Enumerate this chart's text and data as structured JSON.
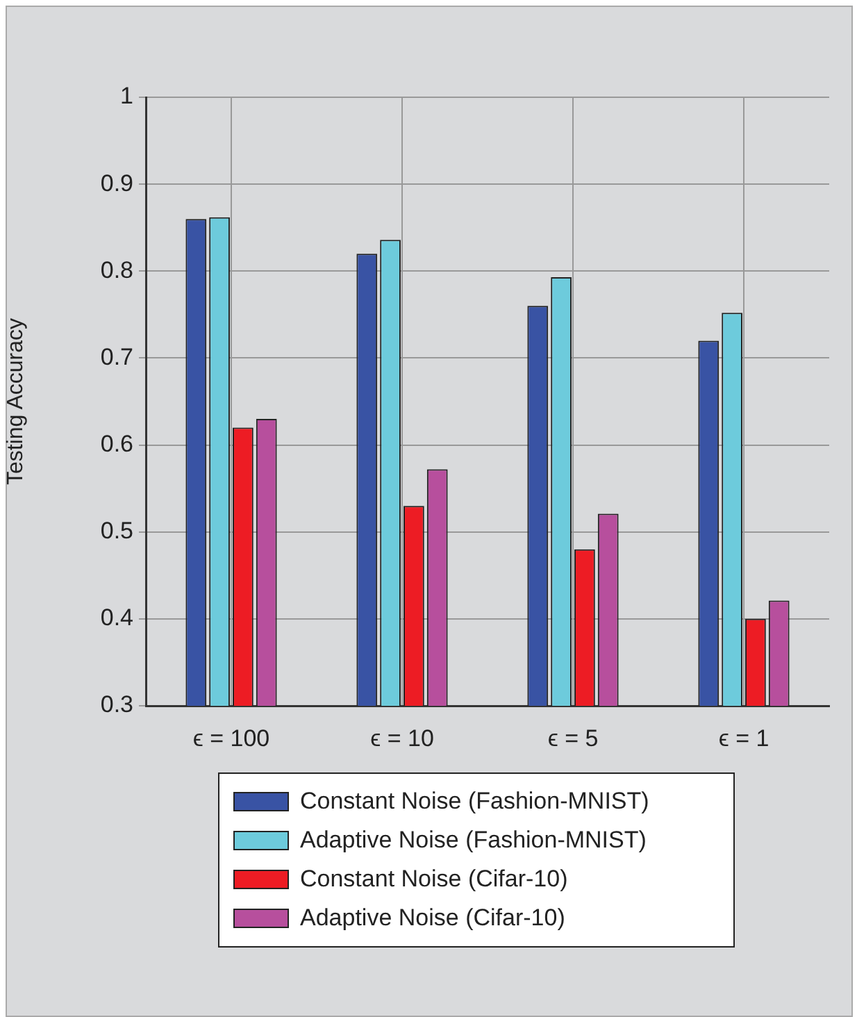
{
  "chart_data": {
    "type": "bar",
    "ylabel": "Testing Accuracy",
    "categories": [
      "ϵ = 100",
      "ϵ = 10",
      "ϵ = 5",
      "ϵ = 1"
    ],
    "series": [
      {
        "name": "Constant Noise (Fashion-MNIST)",
        "color": "#3953a4",
        "values": [
          0.86,
          0.82,
          0.76,
          0.72
        ]
      },
      {
        "name": "Adaptive Noise (Fashion-MNIST)",
        "color": "#6dcbdc",
        "values": [
          0.862,
          0.836,
          0.793,
          0.752
        ]
      },
      {
        "name": "Constant Noise (Cifar-10)",
        "color": "#ed1c24",
        "values": [
          0.62,
          0.53,
          0.48,
          0.4
        ]
      },
      {
        "name": "Adaptive Noise (Cifar-10)",
        "color": "#b74f9d",
        "values": [
          0.63,
          0.572,
          0.521,
          0.421
        ]
      }
    ],
    "ylim": [
      0.3,
      1
    ],
    "yticks": [
      0.3,
      0.4,
      0.5,
      0.6,
      0.7,
      0.8,
      0.9,
      1
    ],
    "grid": true,
    "legend": "bottom"
  }
}
